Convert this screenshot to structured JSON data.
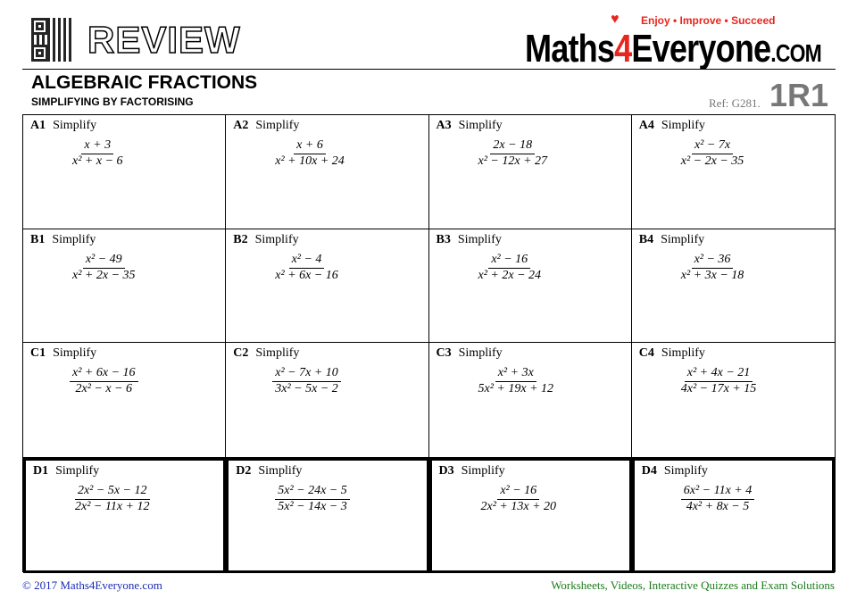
{
  "header": {
    "review": "REVIEW",
    "logo_a": "Maths",
    "logo_4": "4",
    "logo_b": "Everyone",
    "logo_com": ".COM",
    "tagline": "Enjoy • Improve • Succeed",
    "title": "ALGEBRAIC FRACTIONS",
    "subtitle": "SIMPLIFYING BY FACTORISING",
    "ref": "Ref: G281.",
    "code": "1R1"
  },
  "questions": [
    {
      "id": "A1",
      "text": "Simplify",
      "num": "x + 3",
      "den": "x² + x − 6"
    },
    {
      "id": "A2",
      "text": "Simplify",
      "num": "x + 6",
      "den": "x² + 10x + 24"
    },
    {
      "id": "A3",
      "text": "Simplify",
      "num": "2x − 18",
      "den": "x² − 12x + 27"
    },
    {
      "id": "A4",
      "text": "Simplify",
      "num": "x² − 7x",
      "den": "x² − 2x − 35"
    },
    {
      "id": "B1",
      "text": "Simplify",
      "num": "x² − 49",
      "den": "x² + 2x − 35"
    },
    {
      "id": "B2",
      "text": "Simplify",
      "num": "x² − 4",
      "den": "x² + 6x − 16"
    },
    {
      "id": "B3",
      "text": "Simplify",
      "num": "x² − 16",
      "den": "x² + 2x − 24"
    },
    {
      "id": "B4",
      "text": "Simplify",
      "num": "x² − 36",
      "den": "x² + 3x − 18"
    },
    {
      "id": "C1",
      "text": "Simplify",
      "num": "x² + 6x − 16",
      "den": "2x² − x − 6"
    },
    {
      "id": "C2",
      "text": "Simplify",
      "num": "x² − 7x + 10",
      "den": "3x² − 5x − 2"
    },
    {
      "id": "C3",
      "text": "Simplify",
      "num": "x² + 3x",
      "den": "5x² + 19x + 12"
    },
    {
      "id": "C4",
      "text": "Simplify",
      "num": "x² + 4x − 21",
      "den": "4x² − 17x + 15"
    },
    {
      "id": "D1",
      "text": "Simplify",
      "num": "2x² − 5x − 12",
      "den": "2x² − 11x + 12"
    },
    {
      "id": "D2",
      "text": "Simplify",
      "num": "5x² − 24x − 5",
      "den": "5x² − 14x − 3"
    },
    {
      "id": "D3",
      "text": "Simplify",
      "num": "x² − 16",
      "den": "2x² + 13x + 20"
    },
    {
      "id": "D4",
      "text": "Simplify",
      "num": "6x² − 11x + 4",
      "den": "4x² + 8x − 5"
    }
  ],
  "footer": {
    "left": "© 2017 Maths4Everyone.com",
    "right": "Worksheets, Videos, Interactive Quizzes and Exam Solutions"
  },
  "colors": {
    "brand_red": "#e8261d",
    "footer_left": "#1a2bb5",
    "footer_right": "#1a7a1a"
  }
}
